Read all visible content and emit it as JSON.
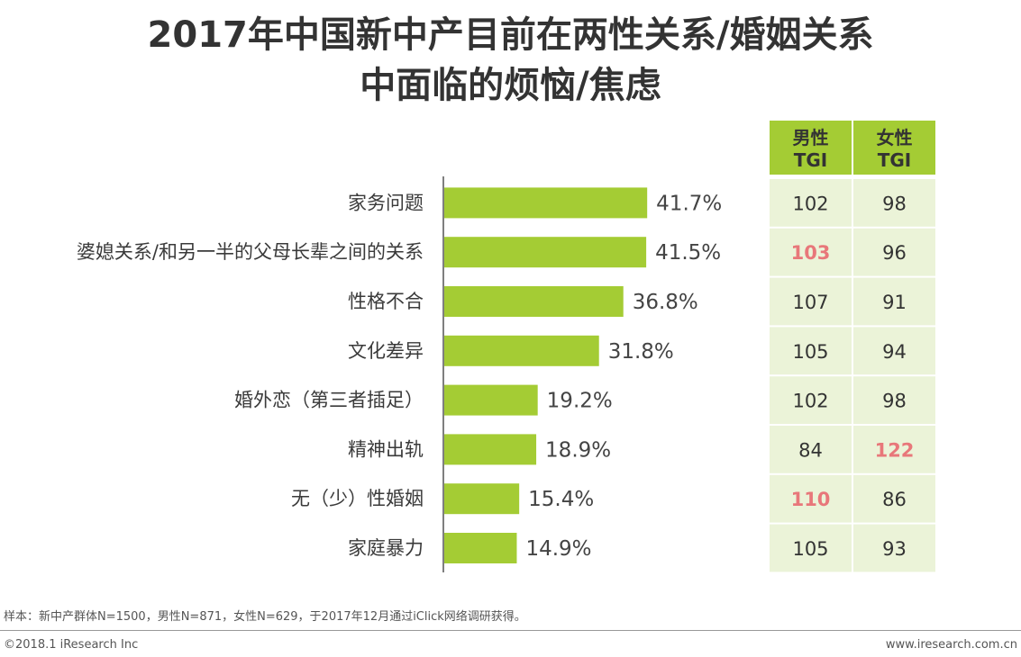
{
  "title_line1": "2017年中国新中产目前在两性关系/婚姻关系",
  "title_line2": "中面临的烦恼/焦虑",
  "colors": {
    "bar": "#a4cc34",
    "header_bg": "#a4cc34",
    "cell_bg": "#ebf3d8",
    "highlight": "#e8777a"
  },
  "chart_data": {
    "type": "bar",
    "orientation": "horizontal",
    "title": "2017年中国新中产目前在两性关系/婚姻关系中面临的烦恼/焦虑",
    "categories": [
      "家务问题",
      "婆媳关系/和另一半的父母长辈之间的关系",
      "性格不合",
      "文化差异",
      "婚外恋（第三者插足）",
      "精神出轨",
      "无（少）性婚姻",
      "家庭暴力"
    ],
    "values": [
      41.7,
      41.5,
      36.8,
      31.8,
      19.2,
      18.9,
      15.4,
      14.9
    ],
    "value_labels": [
      "41.7%",
      "41.5%",
      "36.8%",
      "31.8%",
      "19.2%",
      "18.9%",
      "15.4%",
      "14.9%"
    ],
    "unit": "%",
    "xlim": [
      0,
      100
    ],
    "grid": false,
    "legend": "none",
    "tgi_table": {
      "headers": [
        {
          "line1": "男性",
          "line2": "TGI"
        },
        {
          "line1": "女性",
          "line2": "TGI"
        }
      ],
      "male": [
        102,
        103,
        107,
        105,
        102,
        84,
        110,
        105
      ],
      "female": [
        98,
        96,
        91,
        94,
        98,
        122,
        86,
        93
      ],
      "male_highlight": [
        false,
        true,
        false,
        false,
        false,
        false,
        true,
        false
      ],
      "female_highlight": [
        false,
        false,
        false,
        false,
        false,
        true,
        false,
        false
      ]
    }
  },
  "footnote": "样本：新中产群体N=1500，男性N=871，女性N=629，于2017年12月通过iClick网络调研获得。",
  "copyright": "©2018.1 iResearch Inc",
  "website": "www.iresearch.com.cn"
}
